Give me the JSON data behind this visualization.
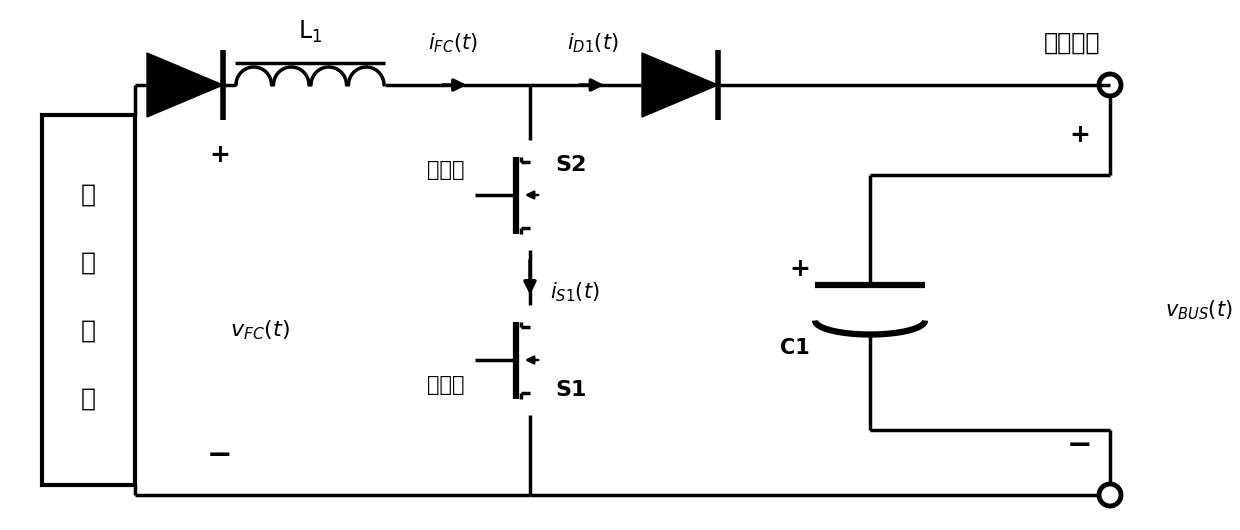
{
  "bg_color": "#ffffff",
  "line_color": "#000000",
  "lw": 2.5,
  "vfc_label": "$v_{FC}(t)$",
  "vbus_label": "$v_{BUS}(t)$",
  "ifc_label": "$i_{FC}(t)$",
  "id1_label": "$i_{D1}(t)$",
  "is1_label": "$i_{S1}(t)$",
  "L1_label": "L$_1$",
  "C1_label": "C1",
  "S1_label": "S1",
  "S2_label": "S2",
  "baohu_label": "保护管",
  "kaiguan_label": "开关管",
  "dcbus_label": "直流母线",
  "battery_chars": [
    "燃",
    "料",
    "电",
    "池"
  ]
}
